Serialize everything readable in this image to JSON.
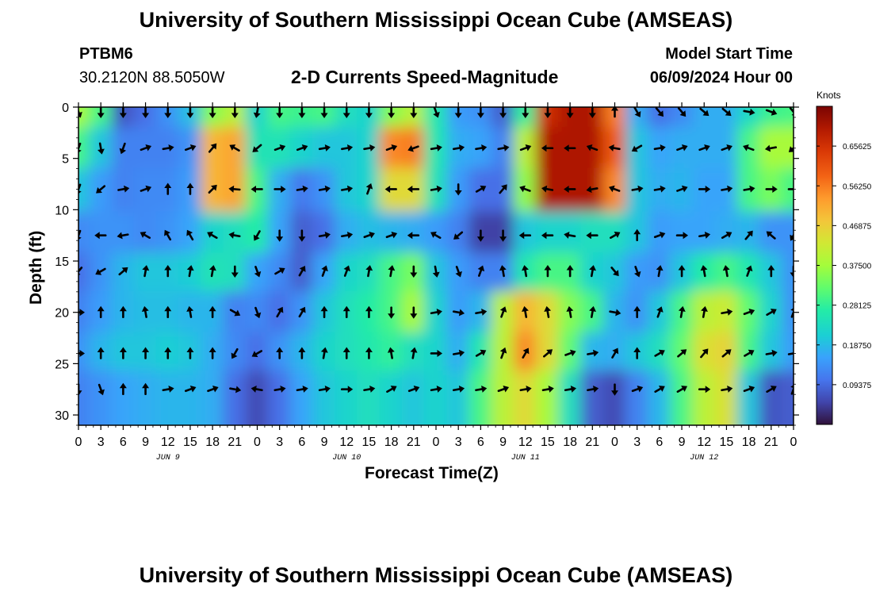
{
  "header": {
    "title": "University of Southern Mississippi Ocean Cube (AMSEAS)",
    "station": "PTBM6",
    "coords": "30.2120N  88.5050W",
    "plot_title": "2-D Currents Speed-Magnitude",
    "model_start_label": "Model Start Time",
    "model_start_value": "06/09/2024 Hour 00"
  },
  "footer": {
    "title": "University of Southern Mississippi Ocean Cube (AMSEAS)"
  },
  "chart_data": {
    "type": "heatmap",
    "title": "2-D Currents Speed-Magnitude",
    "xlabel": "Forecast Time(Z)",
    "ylabel": "Depth (ft)",
    "x_ticks": [
      "0",
      "3",
      "6",
      "9",
      "12",
      "15",
      "18",
      "21",
      "0",
      "3",
      "6",
      "9",
      "12",
      "15",
      "18",
      "21",
      "0",
      "3",
      "6",
      "9",
      "12",
      "15",
      "18",
      "21",
      "0",
      "3",
      "6",
      "9",
      "12",
      "15",
      "18",
      "21",
      "0"
    ],
    "x_hours": [
      0,
      3,
      6,
      9,
      12,
      15,
      18,
      21,
      24,
      27,
      30,
      33,
      36,
      39,
      42,
      45,
      48,
      51,
      54,
      57,
      60,
      63,
      66,
      69,
      72,
      75,
      78,
      81,
      84,
      87,
      90,
      93,
      96
    ],
    "day_labels": [
      {
        "label": "JUN 9",
        "hour": 12
      },
      {
        "label": "JUN 10",
        "hour": 36
      },
      {
        "label": "JUN 11",
        "hour": 60
      },
      {
        "label": "JUN 12",
        "hour": 84
      }
    ],
    "y_ticks": [
      0,
      5,
      10,
      15,
      20,
      25,
      30
    ],
    "ylim": [
      0,
      31
    ],
    "xlim": [
      0,
      96
    ],
    "depth_levels": [
      0,
      4,
      8,
      12.5,
      16,
      20,
      24,
      27.5
    ],
    "colorbar": {
      "unit": "Knots",
      "ticks": [
        "0.65625",
        "0.56250",
        "0.46875",
        "0.37500",
        "0.28125",
        "0.18750",
        "0.09375"
      ],
      "range": [
        0,
        0.75
      ]
    },
    "speed_grid_note": "speed values in knots, rows = depth_levels, columns = x_hours every 3h",
    "speed_grid": [
      [
        0.38,
        0.3,
        0.07,
        0.1,
        0.14,
        0.19,
        0.35,
        0.4,
        0.22,
        0.3,
        0.29,
        0.3,
        0.24,
        0.22,
        0.35,
        0.4,
        0.26,
        0.15,
        0.14,
        0.08,
        0.28,
        0.66,
        0.7,
        0.7,
        0.56,
        0.17,
        0.1,
        0.13,
        0.17,
        0.17,
        0.23,
        0.29,
        0.3
      ],
      [
        0.3,
        0.2,
        0.12,
        0.12,
        0.12,
        0.14,
        0.5,
        0.52,
        0.25,
        0.25,
        0.22,
        0.2,
        0.2,
        0.22,
        0.55,
        0.56,
        0.26,
        0.17,
        0.16,
        0.12,
        0.4,
        0.7,
        0.7,
        0.7,
        0.6,
        0.2,
        0.16,
        0.17,
        0.17,
        0.17,
        0.3,
        0.38,
        0.38
      ],
      [
        0.2,
        0.15,
        0.12,
        0.13,
        0.13,
        0.15,
        0.5,
        0.52,
        0.3,
        0.17,
        0.11,
        0.14,
        0.2,
        0.22,
        0.45,
        0.45,
        0.25,
        0.15,
        0.1,
        0.1,
        0.36,
        0.7,
        0.7,
        0.7,
        0.55,
        0.2,
        0.17,
        0.18,
        0.16,
        0.16,
        0.3,
        0.34,
        0.3
      ],
      [
        0.13,
        0.14,
        0.14,
        0.13,
        0.14,
        0.16,
        0.22,
        0.24,
        0.27,
        0.16,
        0.08,
        0.1,
        0.17,
        0.19,
        0.18,
        0.17,
        0.15,
        0.12,
        0.05,
        0.05,
        0.2,
        0.22,
        0.22,
        0.24,
        0.24,
        0.2,
        0.15,
        0.16,
        0.16,
        0.17,
        0.18,
        0.14,
        0.14
      ],
      [
        0.1,
        0.14,
        0.18,
        0.2,
        0.2,
        0.21,
        0.25,
        0.24,
        0.16,
        0.13,
        0.08,
        0.16,
        0.22,
        0.24,
        0.3,
        0.34,
        0.2,
        0.15,
        0.12,
        0.12,
        0.26,
        0.3,
        0.3,
        0.22,
        0.2,
        0.15,
        0.14,
        0.2,
        0.27,
        0.3,
        0.26,
        0.2,
        0.14
      ],
      [
        0.12,
        0.15,
        0.18,
        0.19,
        0.19,
        0.18,
        0.18,
        0.12,
        0.13,
        0.1,
        0.14,
        0.2,
        0.24,
        0.27,
        0.3,
        0.38,
        0.22,
        0.15,
        0.18,
        0.4,
        0.5,
        0.45,
        0.35,
        0.3,
        0.18,
        0.14,
        0.2,
        0.3,
        0.4,
        0.42,
        0.32,
        0.22,
        0.14
      ],
      [
        0.14,
        0.18,
        0.2,
        0.2,
        0.21,
        0.2,
        0.17,
        0.13,
        0.1,
        0.14,
        0.18,
        0.22,
        0.24,
        0.26,
        0.28,
        0.24,
        0.22,
        0.17,
        0.26,
        0.4,
        0.55,
        0.45,
        0.32,
        0.18,
        0.17,
        0.2,
        0.24,
        0.32,
        0.44,
        0.46,
        0.3,
        0.2,
        0.15
      ],
      [
        0.12,
        0.14,
        0.16,
        0.17,
        0.18,
        0.18,
        0.17,
        0.1,
        0.06,
        0.1,
        0.16,
        0.2,
        0.22,
        0.24,
        0.22,
        0.2,
        0.22,
        0.2,
        0.3,
        0.4,
        0.45,
        0.38,
        0.24,
        0.08,
        0.06,
        0.12,
        0.18,
        0.3,
        0.4,
        0.44,
        0.2,
        0.07,
        0.08
      ]
    ],
    "direction_grid_note": "arrow direction in compass degrees (0 = north/up, 90 = east/right), same grid as speed_grid",
    "direction_grid": [
      [
        160,
        180,
        180,
        180,
        180,
        180,
        180,
        180,
        190,
        180,
        180,
        180,
        180,
        180,
        180,
        180,
        160,
        180,
        180,
        180,
        180,
        180,
        180,
        180,
        0,
        150,
        140,
        140,
        130,
        130,
        100,
        110,
        140
      ],
      [
        200,
        170,
        200,
        70,
        80,
        70,
        40,
        300,
        230,
        70,
        70,
        80,
        80,
        80,
        70,
        250,
        80,
        80,
        80,
        80,
        70,
        270,
        270,
        290,
        280,
        240,
        80,
        70,
        70,
        70,
        290,
        260,
        230
      ],
      [
        200,
        230,
        80,
        70,
        0,
        0,
        45,
        275,
        270,
        90,
        80,
        80,
        80,
        20,
        270,
        270,
        80,
        180,
        60,
        40,
        290,
        280,
        270,
        260,
        290,
        80,
        80,
        70,
        90,
        80,
        80,
        90,
        90
      ],
      [
        200,
        270,
        260,
        300,
        330,
        330,
        300,
        280,
        210,
        180,
        180,
        80,
        80,
        70,
        70,
        270,
        300,
        230,
        180,
        180,
        270,
        270,
        280,
        270,
        60,
        0,
        70,
        90,
        80,
        60,
        40,
        310,
        210
      ],
      [
        220,
        240,
        50,
        10,
        0,
        10,
        10,
        180,
        160,
        60,
        30,
        20,
        20,
        10,
        10,
        180,
        170,
        160,
        20,
        350,
        350,
        0,
        0,
        10,
        140,
        160,
        10,
        0,
        350,
        350,
        20,
        0,
        180
      ],
      [
        90,
        0,
        0,
        350,
        0,
        350,
        0,
        120,
        160,
        30,
        30,
        0,
        0,
        0,
        180,
        180,
        80,
        100,
        80,
        20,
        350,
        350,
        350,
        10,
        100,
        0,
        20,
        10,
        10,
        80,
        70,
        60,
        20
      ],
      [
        90,
        0,
        0,
        0,
        0,
        0,
        0,
        210,
        240,
        0,
        0,
        10,
        0,
        0,
        350,
        10,
        90,
        80,
        60,
        20,
        30,
        50,
        70,
        80,
        30,
        0,
        60,
        50,
        40,
        50,
        60,
        80,
        80
      ],
      [
        180,
        160,
        0,
        0,
        80,
        70,
        70,
        100,
        280,
        80,
        80,
        80,
        90,
        80,
        60,
        70,
        80,
        80,
        80,
        70,
        80,
        80,
        80,
        80,
        180,
        70,
        60,
        60,
        90,
        80,
        70,
        60,
        20
      ]
    ]
  }
}
